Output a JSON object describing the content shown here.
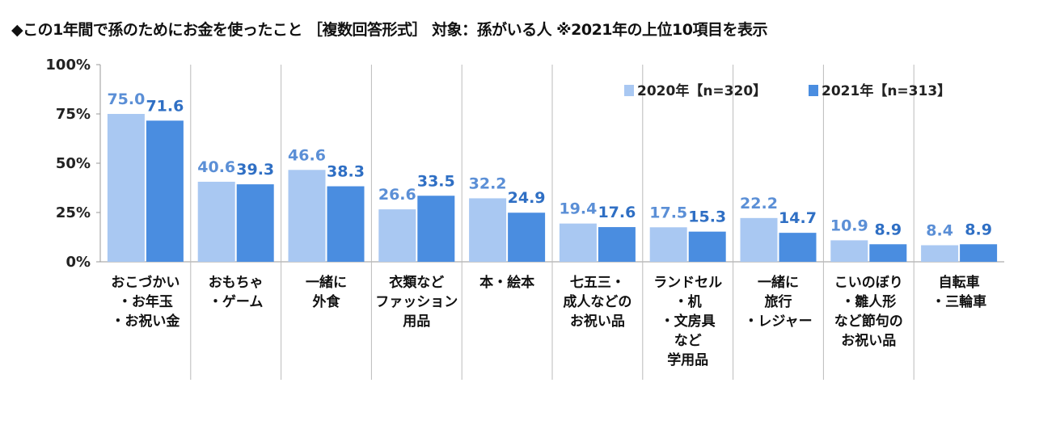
{
  "chart_data": {
    "type": "bar",
    "title": "◆この1年間で孫のためにお金を使ったこと ［複数回答形式］ 対象：孫がいる人 ※2021年の上位10項目を表示",
    "categories": [
      "おこづかい\n・お年玉\n・お祝い金",
      "おもちゃ\n・ゲーム",
      "一緒に\n外食",
      "衣類など\nファッション\n用品",
      "本・絵本",
      "七五三・\n成人などの\nお祝い品",
      "ランドセル\n・机\n・文房具\nなど\n学用品",
      "一緒に\n旅行\n・レジャー",
      "こいのぼり\n・雛人形\nなど節句の\nお祝い品",
      "自転車\n・三輪車"
    ],
    "series": [
      {
        "name": "2020年【n=320】",
        "color": "#a9c8f2",
        "label_color": "#5b8fd6",
        "values": [
          75.0,
          40.6,
          46.6,
          26.6,
          32.2,
          19.4,
          17.5,
          22.2,
          10.9,
          8.4
        ]
      },
      {
        "name": "2021年【n=313】",
        "color": "#4a8de0",
        "label_color": "#2f6fc4",
        "values": [
          71.6,
          39.3,
          38.3,
          33.5,
          24.9,
          17.6,
          15.3,
          14.7,
          8.9,
          8.9
        ]
      }
    ],
    "ylim": [
      0,
      100
    ],
    "yticks": [
      "0%",
      "25%",
      "50%",
      "75%",
      "100%"
    ],
    "ytick_values": [
      0,
      25,
      50,
      75,
      100
    ],
    "grid": false,
    "legend_position": "top-right"
  }
}
